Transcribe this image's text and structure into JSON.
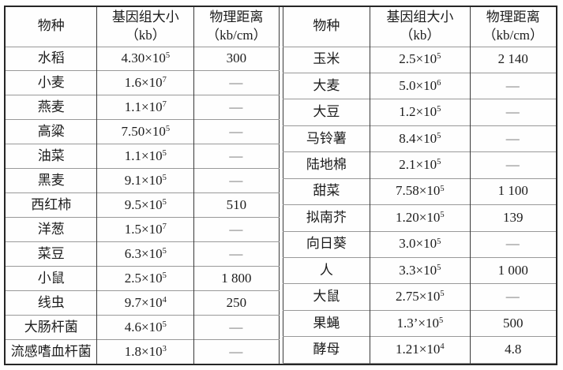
{
  "tables": [
    {
      "name": "left",
      "headers": {
        "species": "物种",
        "genome_line1": "基因组大小",
        "genome_line2": "（kb）",
        "distance_line1": "物理距离",
        "distance_line2": "（kb/cm）"
      },
      "rows": [
        [
          "水稻",
          "4.30×10^5",
          "300"
        ],
        [
          "小麦",
          "1.6×10^7",
          "—"
        ],
        [
          "燕麦",
          "1.1×10^7",
          "—"
        ],
        [
          "高粱",
          "7.50×10^5",
          "—"
        ],
        [
          "油菜",
          "1.1×10^5",
          "—"
        ],
        [
          "黑麦",
          "9.1×10^5",
          "—"
        ],
        [
          "西红柿",
          "9.5×10^5",
          "510"
        ],
        [
          "洋葱",
          "1.5×10^7",
          "—"
        ],
        [
          "菜豆",
          "6.3×10^5",
          "—"
        ],
        [
          "小鼠",
          "2.5×10^5",
          "1 800"
        ],
        [
          "线虫",
          "9.7×10^4",
          "250"
        ],
        [
          "大肠杆菌",
          "4.6×10^5",
          "—"
        ],
        [
          "流感嗜血杆菌",
          "1.8×10^3",
          "—"
        ]
      ]
    },
    {
      "name": "right",
      "headers": {
        "species": "物种",
        "genome_line1": "基因组大小",
        "genome_line2": "（kb）",
        "distance_line1": "物理距离",
        "distance_line2": "（kb/cm）"
      },
      "rows": [
        [
          "玉米",
          "2.5×10^5",
          "2 140"
        ],
        [
          "大麦",
          "5.0×10^6",
          "—"
        ],
        [
          "大豆",
          "1.2×10^5",
          "—"
        ],
        [
          "马铃薯",
          "8.4×10^5",
          "—"
        ],
        [
          "陆地棉",
          "2.1×10^5",
          "—"
        ],
        [
          "甜菜",
          "7.58×10^5",
          "1 100"
        ],
        [
          "拟南芥",
          "1.20×10^5",
          "139"
        ],
        [
          "向日葵",
          "3.0×10^5",
          "—"
        ],
        [
          "人",
          "3.3×10^5",
          "1 000"
        ],
        [
          "大鼠",
          "2.75×10^5",
          "—"
        ],
        [
          "果蝇",
          "1.3’×10^5",
          "500"
        ],
        [
          "酵母",
          "1.21×10^4",
          "4.8"
        ],
        [
          "",
          "",
          ""
        ]
      ]
    }
  ],
  "colors": {
    "outer_border": "#262626",
    "vertical_rule": "#3a3a3a",
    "horizontal_rule": "#999999",
    "dash": "#6f6f6f",
    "text": "#1c1c1c"
  }
}
